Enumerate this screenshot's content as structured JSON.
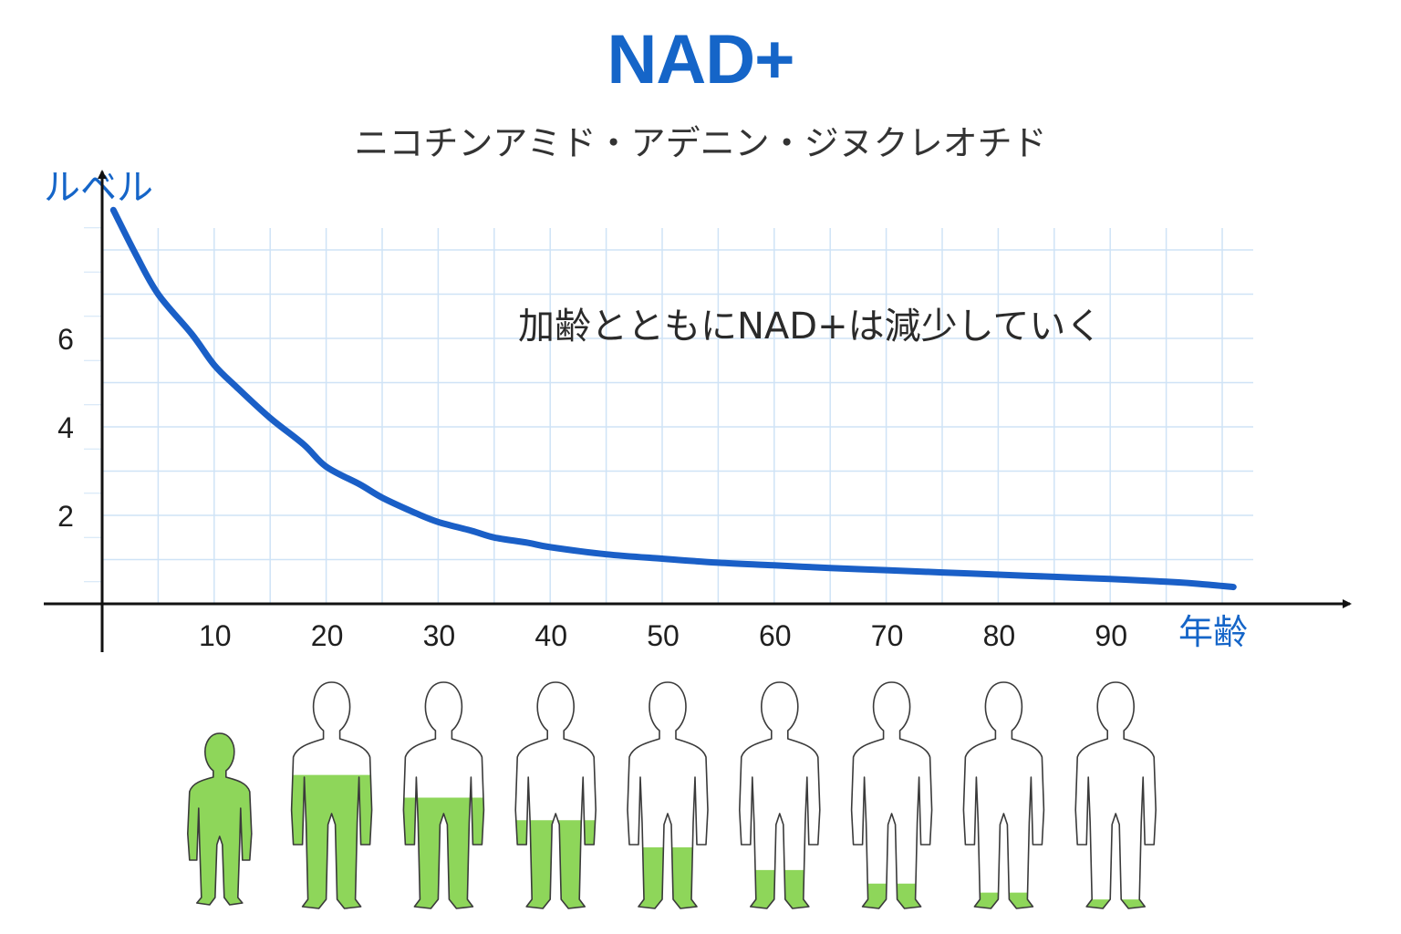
{
  "chart_data": {
    "type": "line",
    "title": "NAD+",
    "subtitle": "ニコチンアミド・アデニン・ジヌクレオチド",
    "annotation": "加齢とともにNAD+は減少していく",
    "ylabel": "ルベル",
    "xlabel": "年齢",
    "x_ticks": [
      10,
      20,
      30,
      40,
      50,
      60,
      70,
      80,
      90
    ],
    "y_ticks": [
      2,
      4,
      6
    ],
    "xlim": [
      0,
      103
    ],
    "ylim": [
      0,
      9
    ],
    "grid": true,
    "series": [
      {
        "x": [
          1,
          3,
          5,
          8,
          10,
          12,
          15,
          18,
          20,
          23,
          25,
          28,
          30,
          33,
          35,
          38,
          40,
          45,
          50,
          55,
          60,
          65,
          70,
          75,
          80,
          85,
          90,
          95,
          98,
          101
        ],
        "values": [
          8.9,
          7.9,
          7.0,
          6.1,
          5.4,
          4.9,
          4.2,
          3.6,
          3.1,
          2.7,
          2.4,
          2.05,
          1.85,
          1.65,
          1.5,
          1.38,
          1.28,
          1.12,
          1.02,
          0.93,
          0.87,
          0.81,
          0.76,
          0.71,
          0.66,
          0.61,
          0.56,
          0.5,
          0.45,
          0.38
        ]
      }
    ],
    "figures": [
      {
        "age": 10,
        "fill_level": 1.0
      },
      {
        "age": 20,
        "fill_level": 0.59
      },
      {
        "age": 30,
        "fill_level": 0.49
      },
      {
        "age": 40,
        "fill_level": 0.39
      },
      {
        "age": 50,
        "fill_level": 0.27
      },
      {
        "age": 60,
        "fill_level": 0.17
      },
      {
        "age": 70,
        "fill_level": 0.11
      },
      {
        "age": 80,
        "fill_level": 0.07
      },
      {
        "age": 90,
        "fill_level": 0.04
      }
    ]
  },
  "colors": {
    "accent": "#1565c8",
    "curve": "#1a5fc7",
    "grid": "#cfe3f6",
    "axis": "#111111",
    "figure_fill": "#8ed65a",
    "figure_outline": "#3a3a3a"
  }
}
